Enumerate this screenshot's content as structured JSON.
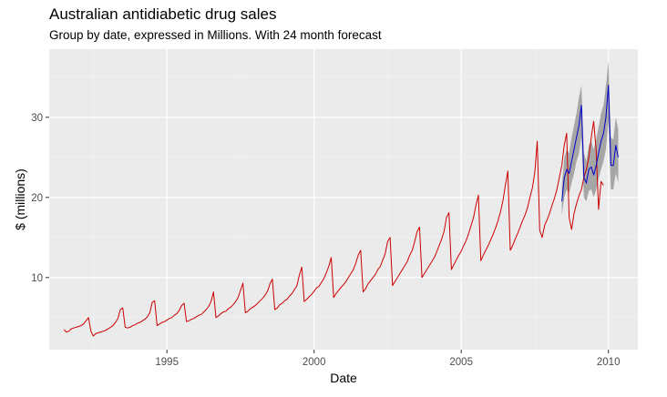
{
  "chart_data": {
    "type": "line",
    "title": "Australian antidiabetic drug sales",
    "subtitle": "Group by date, expressed in Millions. With 24 month forecast",
    "xlabel": "Date",
    "ylabel": "$ (millions)",
    "xlim": [
      1991.0,
      2011.0
    ],
    "ylim": [
      1.0,
      38.5
    ],
    "x_ticks": [
      1995,
      2000,
      2005,
      2010
    ],
    "y_ticks": [
      10,
      20,
      30
    ],
    "grid": true,
    "series": [
      {
        "role": "historical",
        "color": "#cc0000",
        "start_year": 1991.5,
        "step_years": 0.0833333,
        "values": [
          3.5,
          3.2,
          3.3,
          3.6,
          3.7,
          3.8,
          3.9,
          4.0,
          4.2,
          4.6,
          5.0,
          3.3,
          2.7,
          3.0,
          3.1,
          3.2,
          3.3,
          3.4,
          3.6,
          3.8,
          4.0,
          4.4,
          4.9,
          6.0,
          6.2,
          3.8,
          3.7,
          3.8,
          4.0,
          4.1,
          4.3,
          4.4,
          4.6,
          4.8,
          5.1,
          5.6,
          6.9,
          7.1,
          4.0,
          4.2,
          4.4,
          4.5,
          4.7,
          4.9,
          5.0,
          5.3,
          5.5,
          5.9,
          6.5,
          6.8,
          4.5,
          4.6,
          4.8,
          4.9,
          5.1,
          5.3,
          5.4,
          5.7,
          6.0,
          6.4,
          7.0,
          8.2,
          5.0,
          5.2,
          5.5,
          5.7,
          5.8,
          6.1,
          6.3,
          6.6,
          7.0,
          7.5,
          8.4,
          9.3,
          5.6,
          5.8,
          6.1,
          6.3,
          6.5,
          6.8,
          7.1,
          7.4,
          7.8,
          8.3,
          9.2,
          9.8,
          6.0,
          6.2,
          6.6,
          6.8,
          7.1,
          7.3,
          7.7,
          8.0,
          8.5,
          9.0,
          10.3,
          11.3,
          7.0,
          7.3,
          7.6,
          7.9,
          8.3,
          8.7,
          8.9,
          9.4,
          9.9,
          10.6,
          11.4,
          12.5,
          7.5,
          8.0,
          8.4,
          8.8,
          9.1,
          9.5,
          10.0,
          10.5,
          11.0,
          11.8,
          12.8,
          13.4,
          8.2,
          8.6,
          9.2,
          9.6,
          10.0,
          10.4,
          11.0,
          11.4,
          12.2,
          13.0,
          14.5,
          15.0,
          9.0,
          9.5,
          10.0,
          10.5,
          11.0,
          11.5,
          12.0,
          12.8,
          13.4,
          14.5,
          15.7,
          16.3,
          10.0,
          10.5,
          11.0,
          11.5,
          12.0,
          12.5,
          13.2,
          14.0,
          14.8,
          15.8,
          17.5,
          18.1,
          11.0,
          11.6,
          12.2,
          12.8,
          13.3,
          14.0,
          14.6,
          15.5,
          16.5,
          17.5,
          19.0,
          20.3,
          12.1,
          12.8,
          13.4,
          14.0,
          14.7,
          15.4,
          16.2,
          17.1,
          18.2,
          19.6,
          21.5,
          23.3,
          13.4,
          14.0,
          14.8,
          15.5,
          16.3,
          17.1,
          17.8,
          18.7,
          20.0,
          21.2,
          23.1,
          27.0,
          15.9,
          15.0,
          16.5,
          17.2,
          18.0,
          19.0,
          19.9,
          21.0,
          22.5,
          24.0,
          26.5,
          28.0,
          17.5,
          16.0,
          18.0,
          19.2,
          20.2,
          21.0,
          22.5,
          23.5,
          25.0,
          27.5,
          29.5,
          26.0,
          18.5,
          22.0,
          21.5
        ]
      },
      {
        "role": "forecast",
        "color": "#0000cc",
        "band_color": "#a6a6a6",
        "start_year": 2008.417,
        "step_years": 0.0833333,
        "values": [
          19.5,
          22.5,
          23.5,
          23.0,
          24.5,
          26.0,
          27.5,
          29.0,
          31.5,
          22.5,
          21.8,
          23.5,
          23.8,
          22.8,
          24.0,
          25.5,
          27.0,
          28.0,
          30.0,
          34.0,
          24.0,
          24.0,
          26.5,
          25.0
        ],
        "lower": [
          17.8,
          20.0,
          21.0,
          20.5,
          21.8,
          23.0,
          24.5,
          25.5,
          27.5,
          20.0,
          19.5,
          20.8,
          21.0,
          20.0,
          21.0,
          22.3,
          23.5,
          24.5,
          26.0,
          29.5,
          21.0,
          21.0,
          23.0,
          21.8
        ],
        "upper": [
          21.5,
          25.0,
          26.0,
          25.5,
          27.5,
          29.0,
          30.5,
          32.5,
          34.0,
          25.5,
          24.5,
          26.5,
          27.0,
          26.0,
          27.2,
          28.8,
          30.5,
          31.5,
          34.0,
          37.0,
          27.5,
          27.2,
          30.0,
          28.5
        ]
      }
    ]
  }
}
